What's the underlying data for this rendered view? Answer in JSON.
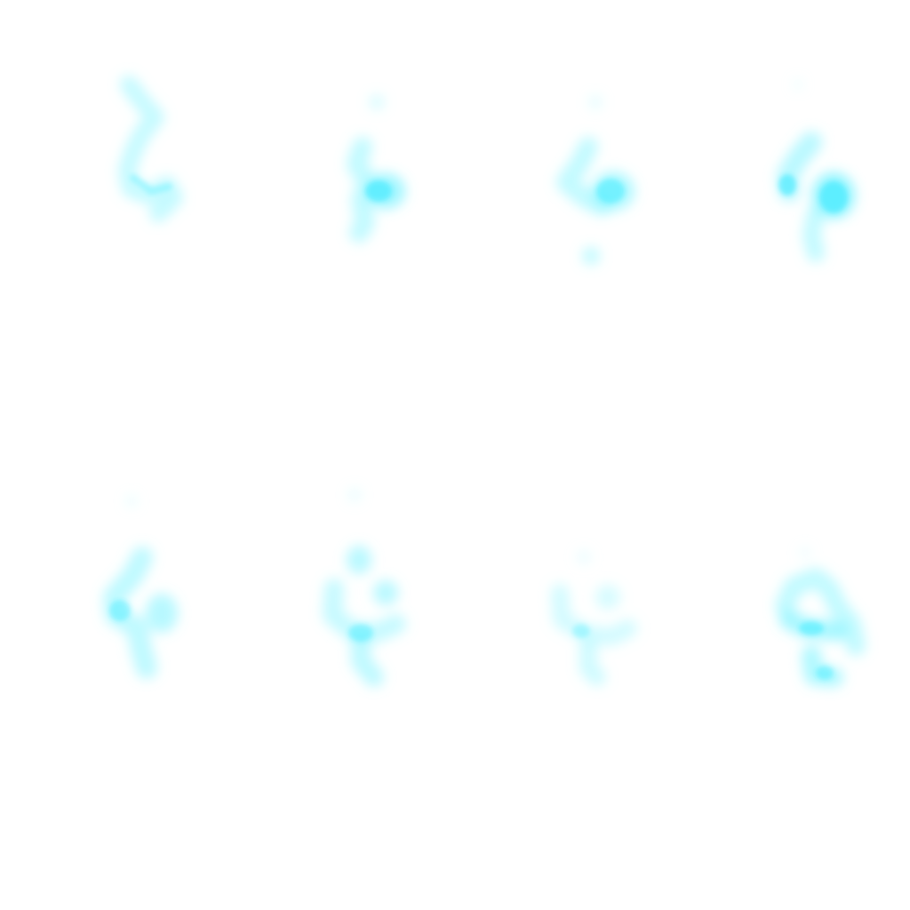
{
  "sheet": {
    "type": "sprite-sheet",
    "columns": 4,
    "rows": 2,
    "frame_count": 8,
    "background_color": "#ffffff",
    "glow_color": "#5ff2ff",
    "core_color": "#2ee8ff",
    "frames": [
      {
        "name": "smoke-frame-1"
      },
      {
        "name": "smoke-frame-2"
      },
      {
        "name": "smoke-frame-3"
      },
      {
        "name": "smoke-frame-4"
      },
      {
        "name": "smoke-frame-5"
      },
      {
        "name": "smoke-frame-6"
      },
      {
        "name": "smoke-frame-7"
      },
      {
        "name": "smoke-frame-8"
      }
    ]
  }
}
